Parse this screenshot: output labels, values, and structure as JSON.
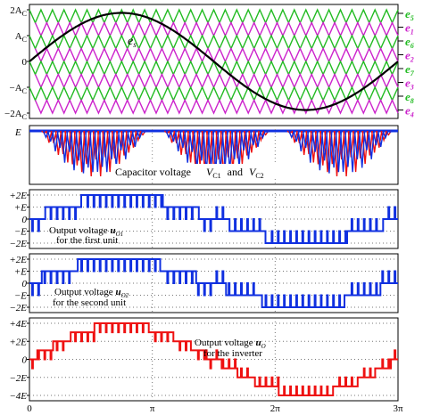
{
  "panel1": {
    "y_ticks": [
      "2A",
      "A",
      "0",
      "−A",
      "−2A"
    ],
    "y_ticks_sub": "C",
    "curve_label": "e",
    "curve_label_sub": "s",
    "carrier_labels": [
      {
        "name": "e",
        "sub": "5",
        "color": "#22bb22"
      },
      {
        "name": "e",
        "sub": "1",
        "color": "#cc22cc"
      },
      {
        "name": "e",
        "sub": "6",
        "color": "#22bb22"
      },
      {
        "name": "e",
        "sub": "2",
        "color": "#cc22cc"
      },
      {
        "name": "e",
        "sub": "7",
        "color": "#22bb22"
      },
      {
        "name": "e",
        "sub": "3",
        "color": "#cc22cc"
      },
      {
        "name": "e",
        "sub": "8",
        "color": "#22bb22"
      },
      {
        "name": "e",
        "sub": "4",
        "color": "#cc22cc"
      }
    ]
  },
  "panel2": {
    "y_tick": "E",
    "text_a": "Capacitor voltage",
    "text_b": "V",
    "text_b_sub": "C1",
    "text_c": "and",
    "text_d": "V",
    "text_d_sub": "C2"
  },
  "panel3": {
    "y_ticks": [
      "+2E",
      "+E",
      "0",
      "−E",
      "−2E"
    ],
    "label_line1": "Output voltage",
    "label_var": "u",
    "label_sub": "O1",
    "label_line2": "for the first unit"
  },
  "panel4": {
    "y_ticks": [
      "+2E",
      "+E",
      "0",
      "−E",
      "−2E"
    ],
    "label_line1": "Output voltage",
    "label_var": "u",
    "label_sub": "O2",
    "label_line2": "for the second unit"
  },
  "panel5": {
    "y_ticks": [
      "+4E",
      "+2E",
      "0",
      "−2E",
      "−4E"
    ],
    "label_line1": "Output voltage",
    "label_var": "u",
    "label_sub": "O",
    "label_line2": "for the inverter"
  },
  "x_ticks": [
    "0",
    "π",
    "2π",
    "3π"
  ],
  "colors": {
    "blue": "#1030e0",
    "red": "#ee1111",
    "green": "#22bb22",
    "magenta": "#cc22cc",
    "black": "#000000"
  }
}
